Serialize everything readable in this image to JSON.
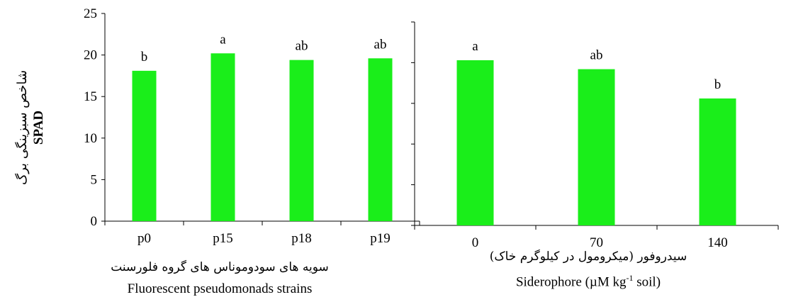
{
  "chart_data": [
    {
      "type": "bar",
      "categories": [
        "p0",
        "p15",
        "p18",
        "p19"
      ],
      "values": [
        18.1,
        20.2,
        19.4,
        19.6
      ],
      "letters": [
        "b",
        "a",
        "ab",
        "ab"
      ],
      "ylim": [
        0,
        25
      ],
      "yticks": [
        "0",
        "5",
        "10",
        "15",
        "20",
        "25"
      ],
      "ylabel_fa": "شاخص سبزینگی برگ",
      "ylabel_en": "SPAD",
      "xlabel_fa": "سویه های سودوموناس های گروه فلورسنت",
      "xlabel_en": "Fluorescent pseudomonads strains",
      "color": "#1aee1a"
    },
    {
      "type": "bar",
      "categories": [
        "0",
        "70",
        "140"
      ],
      "values": [
        20.3,
        19.2,
        15.6
      ],
      "letters": [
        "a",
        "ab",
        "b"
      ],
      "ylim": [
        0,
        25
      ],
      "xlabel_fa": "سیدروفور (میکرومول در کیلوگرم خاک)",
      "xlabel_en": "Siderophore (µM kg-1 soil)",
      "color": "#1aee1a"
    }
  ]
}
